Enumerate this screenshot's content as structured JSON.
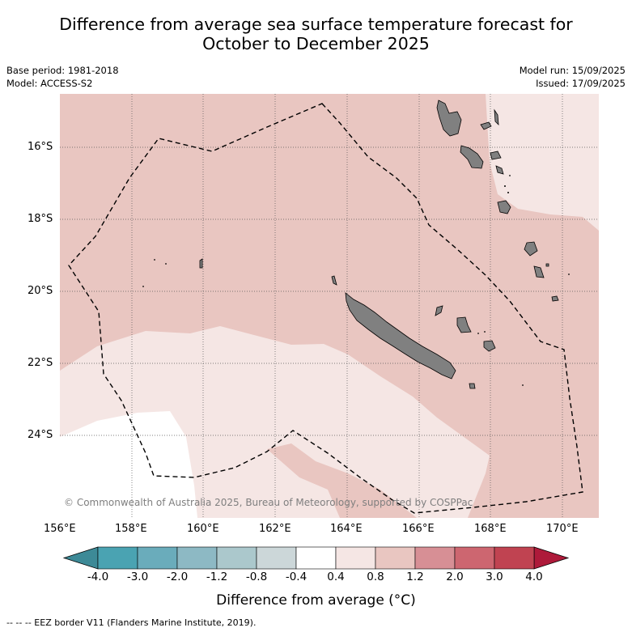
{
  "title_line1": "Difference from average sea surface temperature forecast for",
  "title_line2": "October to December 2025",
  "base_period": "Base period: 1981-2018",
  "model": "Model: ACCESS-S2",
  "model_run": "Model run: 15/09/2025",
  "issued": "Issued: 17/09/2025",
  "copyright": "© Commonwealth of Australia 2025, Bureau of Meteorology, supported by COSPPac",
  "lat_ticks": [
    "16°S",
    "18°S",
    "20°S",
    "22°S",
    "24°S"
  ],
  "lon_ticks": [
    "156°E",
    "158°E",
    "160°E",
    "162°E",
    "164°E",
    "166°E",
    "168°E",
    "170°E"
  ],
  "colorbar": {
    "labels": [
      "-4.0",
      "-3.0",
      "-2.0",
      "-1.2",
      "-0.8",
      "-0.4",
      "0.4",
      "0.8",
      "1.2",
      "2.0",
      "3.0",
      "4.0"
    ],
    "colors": [
      "#4aa3b2",
      "#6aacbb",
      "#8db9c4",
      "#abc8cc",
      "#ccd7d9",
      "#ffffff",
      "#f5e6e4",
      "#e9c6c1",
      "#d78f95",
      "#cd6670",
      "#c04351"
    ],
    "under_color": "#3d8a97",
    "over_color": "#ae1a3a",
    "title": "Difference from average (°C)"
  },
  "legend": "--  --  -- EEZ border V11 (Flanders Marine Institute, 2019).",
  "map_fills": {
    "ocean_0.8_1.2": "#e9c6c1",
    "ocean_0.4_0.8": "#f5e6e4",
    "ocean_neutral": "#ffffff",
    "land": "#808080"
  }
}
